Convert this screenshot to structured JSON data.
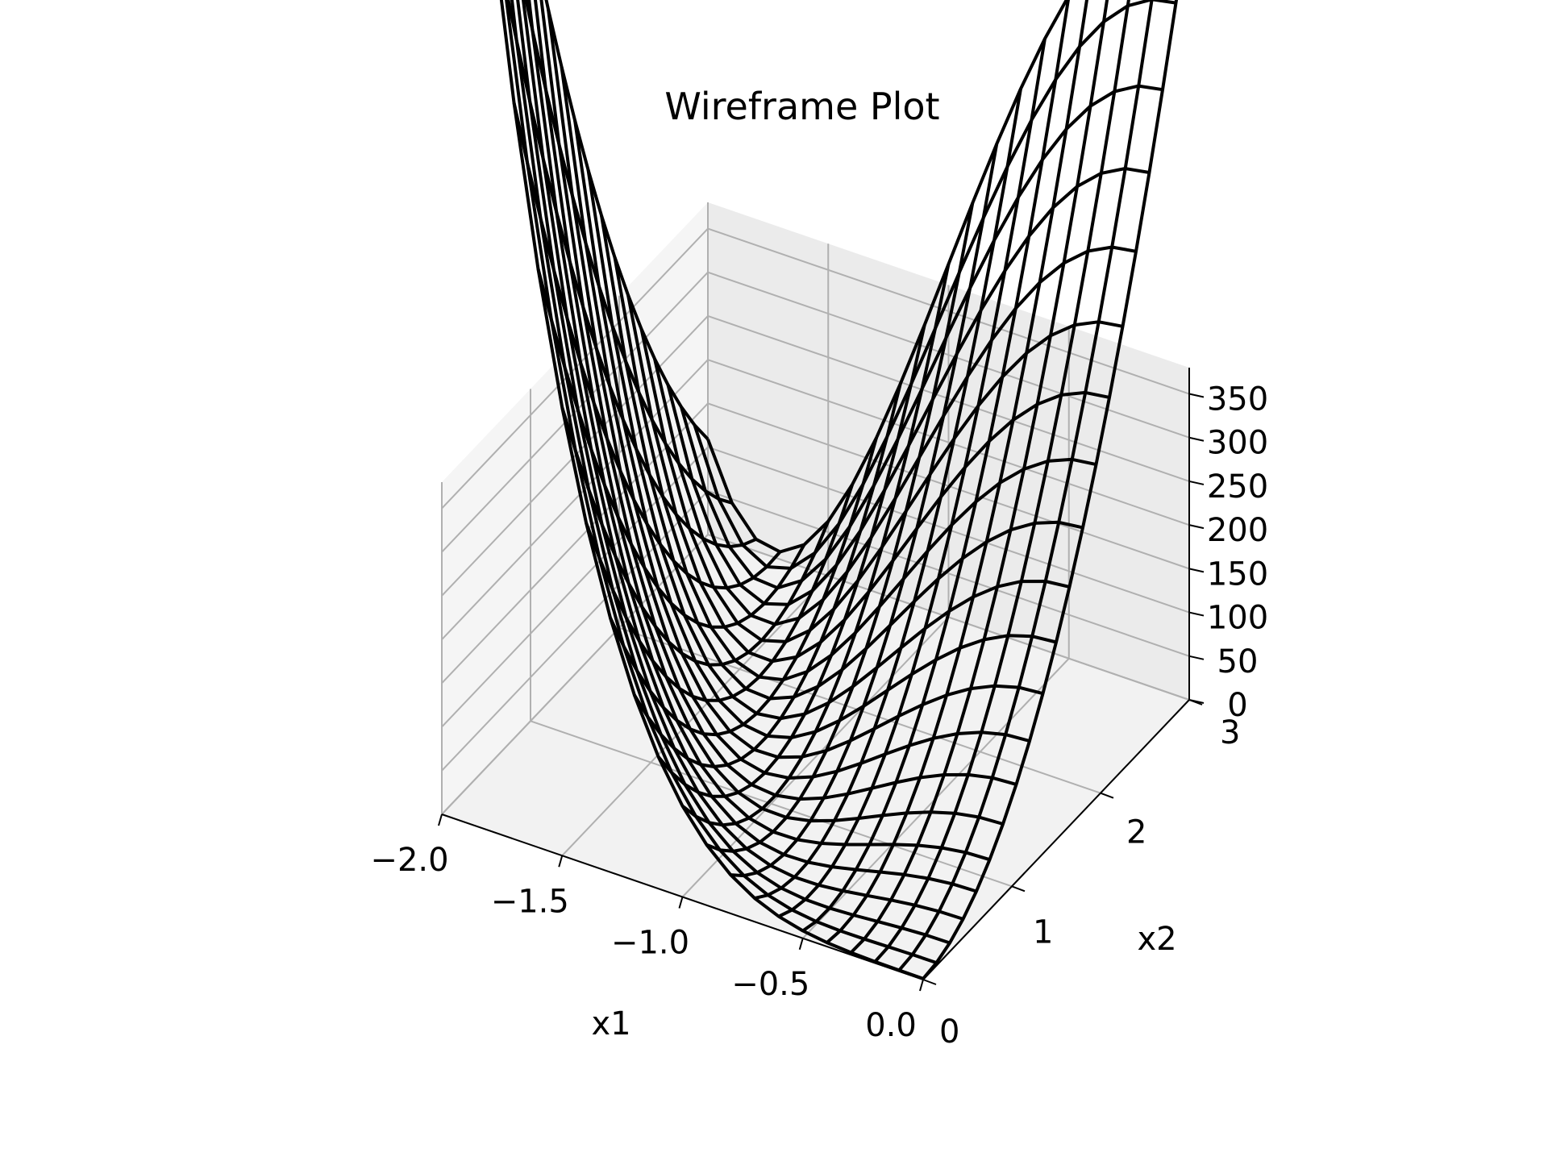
{
  "chart_data": {
    "type": "wireframe",
    "title": "Wireframe Plot",
    "xlabel": "x1",
    "ylabel": "x2",
    "zlabel": "",
    "xlim": [
      -2.0,
      0.0
    ],
    "ylim": [
      0,
      3
    ],
    "zlim": [
      0,
      380
    ],
    "x_ticks": [
      "−2.0",
      "−1.5",
      "−1.0",
      "−0.5",
      "0.0"
    ],
    "y_ticks": [
      "0",
      "1",
      "2",
      "3"
    ],
    "z_ticks": [
      "0",
      "50",
      "100",
      "150",
      "200",
      "250",
      "300",
      "350"
    ],
    "grid": true,
    "x": {
      "start": -2.0,
      "stop": 0.0,
      "count": 21
    },
    "y": {
      "start": 0.0,
      "stop": 3.0,
      "count": 21
    },
    "surface": "z = 100*(x2 - x1^2)^2 + (1 - x1)^2",
    "colors": {
      "wire": "#000000",
      "pane": "#f2f2f2",
      "grid": "#b0b0b0"
    }
  }
}
